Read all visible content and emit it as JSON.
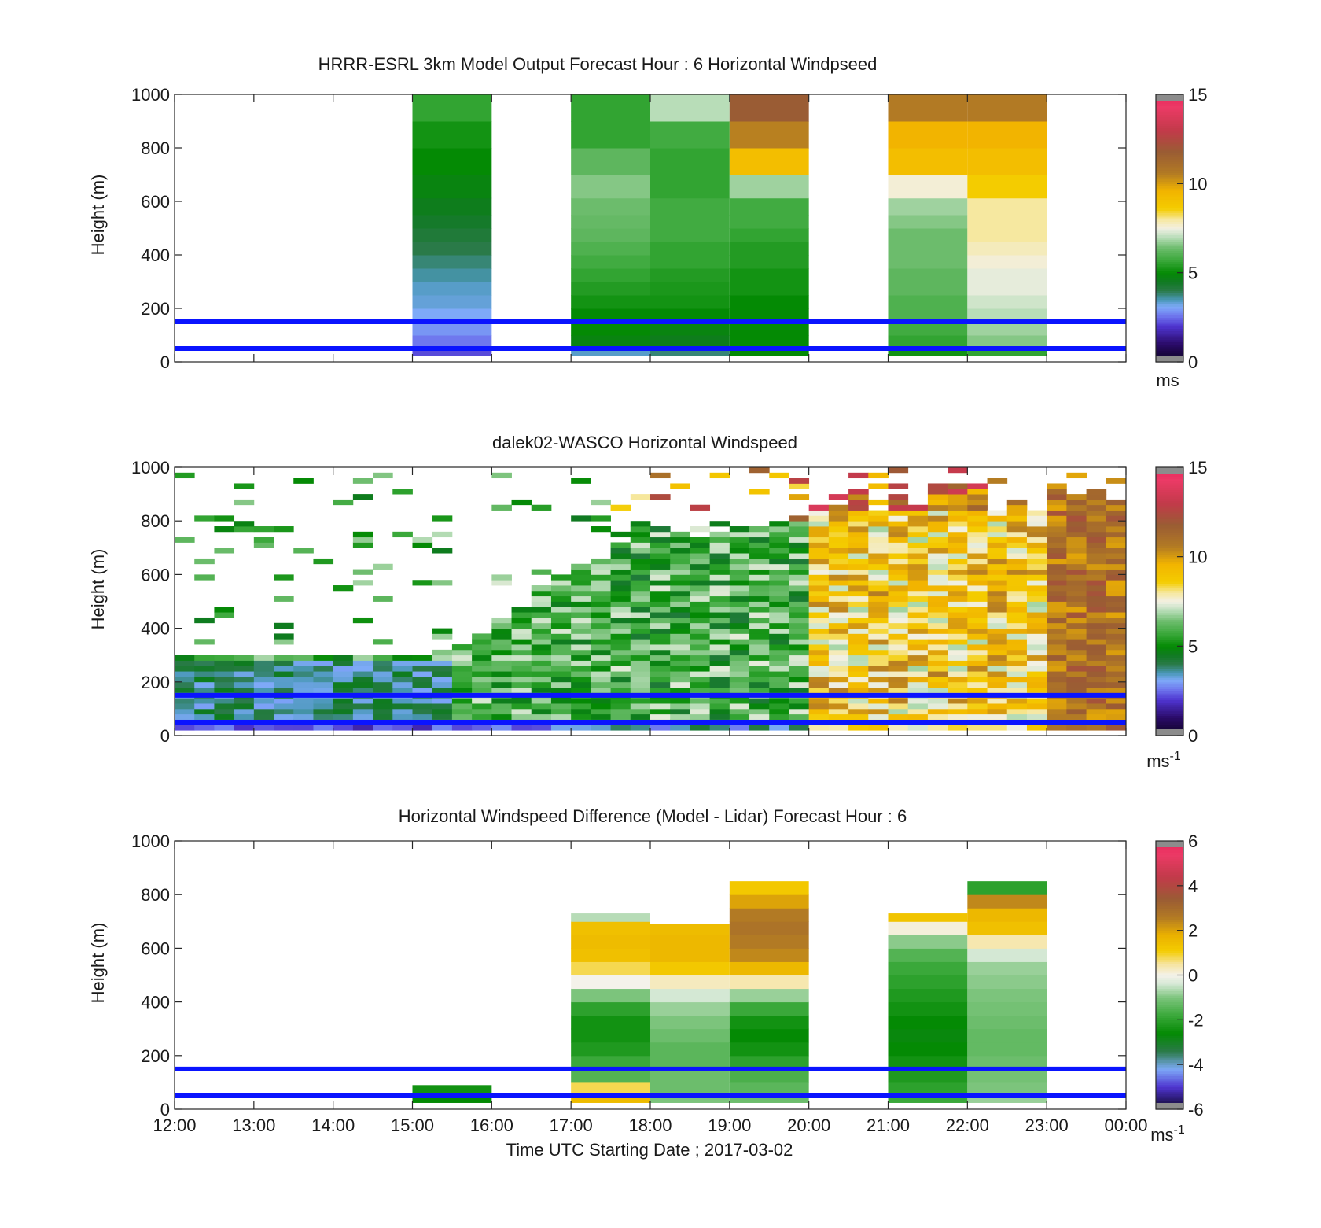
{
  "figure": {
    "xlabel": "Time UTC  Starting Date ; 2017-03-02",
    "xticks": [
      "12:00",
      "13:00",
      "14:00",
      "15:00",
      "16:00",
      "17:00",
      "18:00",
      "19:00",
      "20:00",
      "21:00",
      "22:00",
      "23:00",
      "00:00"
    ],
    "line_heights_m": [
      50,
      150
    ],
    "line_color": "#0a14ff"
  },
  "chart_data": [
    {
      "type": "heatmap",
      "title": "HRRR-ESRL 3km Model Output   Forecast Hour : 6 Horizontal Windpseed",
      "ylabel": "Height (m)",
      "ylim": [
        0,
        1000
      ],
      "yticks": [
        "0",
        "200",
        "400",
        "600",
        "800",
        "1000"
      ],
      "colorbar": {
        "ticks": [
          "0",
          "5",
          "10",
          "15"
        ],
        "range": [
          0,
          15
        ],
        "unit": "ms",
        "unit_sup": ""
      },
      "scale": "speed",
      "x_hours": [
        15,
        17,
        18,
        19,
        21,
        22
      ],
      "heights_m": [
        40,
        75,
        125,
        175,
        225,
        275,
        325,
        375,
        425,
        475,
        525,
        575,
        650,
        750,
        850,
        950
      ],
      "values": [
        [
          2.2,
          2.6,
          2.9,
          3.1,
          3.3,
          3.4,
          3.6,
          3.8,
          4.0,
          4.2,
          4.4,
          4.6,
          4.8,
          5.0,
          5.2,
          5.6
        ],
        [
          3.4,
          4.8,
          5.0,
          5.0,
          5.2,
          5.4,
          5.6,
          5.8,
          6.0,
          6.2,
          6.3,
          6.4,
          6.6,
          6.2,
          5.6,
          5.6
        ],
        [
          3.8,
          4.6,
          4.8,
          5.0,
          5.2,
          5.3,
          5.4,
          5.6,
          5.6,
          5.8,
          5.8,
          5.8,
          5.6,
          5.6,
          5.8,
          7.0
        ],
        [
          5.0,
          5.0,
          5.0,
          5.0,
          5.0,
          5.2,
          5.2,
          5.4,
          5.4,
          5.6,
          5.8,
          5.8,
          6.8,
          9.2,
          10.5,
          11.8
        ],
        [
          5.2,
          5.6,
          5.8,
          6.0,
          6.0,
          6.2,
          6.2,
          6.4,
          6.4,
          6.4,
          6.6,
          6.8,
          7.6,
          9.2,
          9.6,
          10.6
        ],
        [
          5.6,
          6.6,
          6.8,
          7.0,
          7.2,
          7.4,
          7.4,
          7.6,
          7.8,
          8.0,
          8.0,
          8.0,
          8.6,
          9.2,
          9.6,
          10.6
        ]
      ]
    },
    {
      "type": "heatmap",
      "title": "dalek02-WASCO  Horizontal Windspeed",
      "ylabel": "Height (m)",
      "ylim": [
        0,
        1000
      ],
      "yticks": [
        "0",
        "200",
        "400",
        "600",
        "800",
        "1000"
      ],
      "colorbar": {
        "ticks": [
          "0",
          "5",
          "10",
          "15"
        ],
        "range": [
          0,
          15
        ],
        "unit": "ms",
        "unit_sup": "-1"
      },
      "scale": "speed",
      "profile_times": "every 15 minutes, 12:00 to 23:45",
      "profile_layers": "heights 0 to 1000 m in 20 m layers; missing above the lidar range",
      "regimes": [
        {
          "from": "12:00",
          "to": "15:30",
          "description": "1-4 ms-1 near surface, mostly missing aloft"
        },
        {
          "from": "15:30",
          "to": "20:00",
          "description": "4-7 ms-1 through 0-800 m"
        },
        {
          "from": "20:00",
          "to": "23:00",
          "description": "7-10 ms-1"
        },
        {
          "from": "23:00",
          "to": "00:00",
          "description": "10-12 ms-1"
        }
      ]
    },
    {
      "type": "heatmap",
      "title": "Horizontal Windspeed Difference (Model - Lidar) Forecast Hour : 6",
      "ylabel": "Height (m)",
      "ylim": [
        0,
        1000
      ],
      "yticks": [
        "0",
        "200",
        "400",
        "600",
        "800",
        "1000"
      ],
      "colorbar": {
        "ticks": [
          "-6",
          "-4",
          "-2",
          "0",
          "2",
          "4",
          "6"
        ],
        "range": [
          -6,
          6
        ],
        "unit": "ms",
        "unit_sup": "-1"
      },
      "scale": "diff",
      "x_hours": [
        15,
        17,
        18,
        19,
        21,
        22
      ],
      "column_top_m": [
        90,
        730,
        690,
        870,
        730,
        860
      ],
      "heights_m": [
        40,
        75,
        125,
        175,
        225,
        275,
        325,
        375,
        425,
        475,
        525,
        575,
        625,
        675,
        725,
        775,
        825
      ],
      "values": [
        [
          -2.6,
          -2.4,
          null,
          null,
          null,
          null,
          null,
          null,
          null,
          null,
          null,
          null,
          null,
          null,
          null,
          null,
          null
        ],
        [
          1.5,
          0.8,
          -1.5,
          -1.8,
          -2.2,
          -2.4,
          -2.4,
          -2.0,
          -1.0,
          0.0,
          0.8,
          1.4,
          1.5,
          1.4,
          -0.6,
          null,
          null
        ],
        [
          -1.0,
          -1.2,
          -1.2,
          -1.4,
          -1.4,
          -1.2,
          -1.0,
          -0.8,
          -0.4,
          0.3,
          1.2,
          1.6,
          1.6,
          1.5,
          null,
          null,
          null
        ],
        [
          -1.2,
          -1.4,
          -1.6,
          -2.0,
          -2.4,
          -2.6,
          -2.4,
          -1.8,
          -0.8,
          0.4,
          1.6,
          2.4,
          2.6,
          2.8,
          2.6,
          2.0,
          1.2
        ],
        [
          -1.8,
          -2.0,
          -2.2,
          -2.4,
          -2.6,
          -2.7,
          -2.6,
          -2.4,
          -2.2,
          -2.0,
          -1.8,
          -1.5,
          -0.9,
          0.1,
          1.3,
          null,
          null
        ],
        [
          -0.8,
          -1.0,
          -1.1,
          -1.2,
          -1.3,
          -1.3,
          -1.2,
          -1.1,
          -1.0,
          -0.9,
          -0.8,
          -0.4,
          0.4,
          1.4,
          1.6,
          2.4,
          -2.0
        ]
      ]
    }
  ]
}
